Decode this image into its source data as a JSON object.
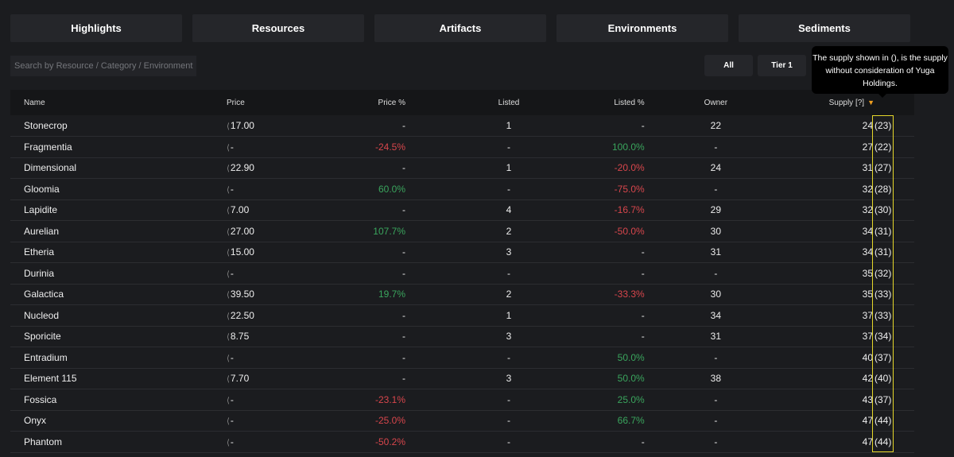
{
  "tabs": [
    "Highlights",
    "Resources",
    "Artifacts",
    "Environments",
    "Sediments"
  ],
  "search": {
    "placeholder": "Search by Resource / Category / Environment"
  },
  "filters": [
    "All",
    "Tier 1"
  ],
  "tooltip": "The supply shown in (), is the supply without consideration of Yuga Holdings.",
  "columns": {
    "name": "Name",
    "price": "Price",
    "price_pct": "Price %",
    "listed": "Listed",
    "listed_pct": "Listed %",
    "owner": "Owner",
    "supply": "Supply [?]"
  },
  "colors": {
    "positive": "#3aa55d",
    "negative": "#d8464c",
    "highlight": "#e5d72a",
    "sort": "#f0a020"
  },
  "rows": [
    {
      "name": "Stonecrop",
      "price": "17.00",
      "price_pct": "-",
      "listed": "1",
      "listed_pct": "-",
      "owner": "22",
      "supply": "24",
      "supply_ex": "(23)"
    },
    {
      "name": "Fragmentia",
      "price": "-",
      "price_pct": "-24.5%",
      "listed": "-",
      "listed_pct": "100.0%",
      "owner": "-",
      "supply": "27",
      "supply_ex": "(22)"
    },
    {
      "name": "Dimensional",
      "price": "22.90",
      "price_pct": "-",
      "listed": "1",
      "listed_pct": "-20.0%",
      "owner": "24",
      "supply": "31",
      "supply_ex": "(27)"
    },
    {
      "name": "Gloomia",
      "price": "-",
      "price_pct": "60.0%",
      "listed": "-",
      "listed_pct": "-75.0%",
      "owner": "-",
      "supply": "32",
      "supply_ex": "(28)"
    },
    {
      "name": "Lapidite",
      "price": "7.00",
      "price_pct": "-",
      "listed": "4",
      "listed_pct": "-16.7%",
      "owner": "29",
      "supply": "32",
      "supply_ex": "(30)"
    },
    {
      "name": "Aurelian",
      "price": "27.00",
      "price_pct": "107.7%",
      "listed": "2",
      "listed_pct": "-50.0%",
      "owner": "30",
      "supply": "34",
      "supply_ex": "(31)"
    },
    {
      "name": "Etheria",
      "price": "15.00",
      "price_pct": "-",
      "listed": "3",
      "listed_pct": "-",
      "owner": "31",
      "supply": "34",
      "supply_ex": "(31)"
    },
    {
      "name": "Durinia",
      "price": "-",
      "price_pct": "-",
      "listed": "-",
      "listed_pct": "-",
      "owner": "-",
      "supply": "35",
      "supply_ex": "(32)"
    },
    {
      "name": "Galactica",
      "price": "39.50",
      "price_pct": "19.7%",
      "listed": "2",
      "listed_pct": "-33.3%",
      "owner": "30",
      "supply": "35",
      "supply_ex": "(33)"
    },
    {
      "name": "Nucleod",
      "price": "22.50",
      "price_pct": "-",
      "listed": "1",
      "listed_pct": "-",
      "owner": "34",
      "supply": "37",
      "supply_ex": "(33)"
    },
    {
      "name": "Sporicite",
      "price": "8.75",
      "price_pct": "-",
      "listed": "3",
      "listed_pct": "-",
      "owner": "31",
      "supply": "37",
      "supply_ex": "(34)"
    },
    {
      "name": "Entradium",
      "price": "-",
      "price_pct": "-",
      "listed": "-",
      "listed_pct": "50.0%",
      "owner": "-",
      "supply": "40",
      "supply_ex": "(37)"
    },
    {
      "name": "Element 115",
      "price": "7.70",
      "price_pct": "-",
      "listed": "3",
      "listed_pct": "50.0%",
      "owner": "38",
      "supply": "42",
      "supply_ex": "(40)"
    },
    {
      "name": "Fossica",
      "price": "-",
      "price_pct": "-23.1%",
      "listed": "-",
      "listed_pct": "25.0%",
      "owner": "-",
      "supply": "43",
      "supply_ex": "(37)"
    },
    {
      "name": "Onyx",
      "price": "-",
      "price_pct": "-25.0%",
      "listed": "-",
      "listed_pct": "66.7%",
      "owner": "-",
      "supply": "47",
      "supply_ex": "(44)"
    },
    {
      "name": "Phantom",
      "price": "-",
      "price_pct": "-50.2%",
      "listed": "-",
      "listed_pct": "-",
      "owner": "-",
      "supply": "47",
      "supply_ex": "(44)"
    }
  ]
}
